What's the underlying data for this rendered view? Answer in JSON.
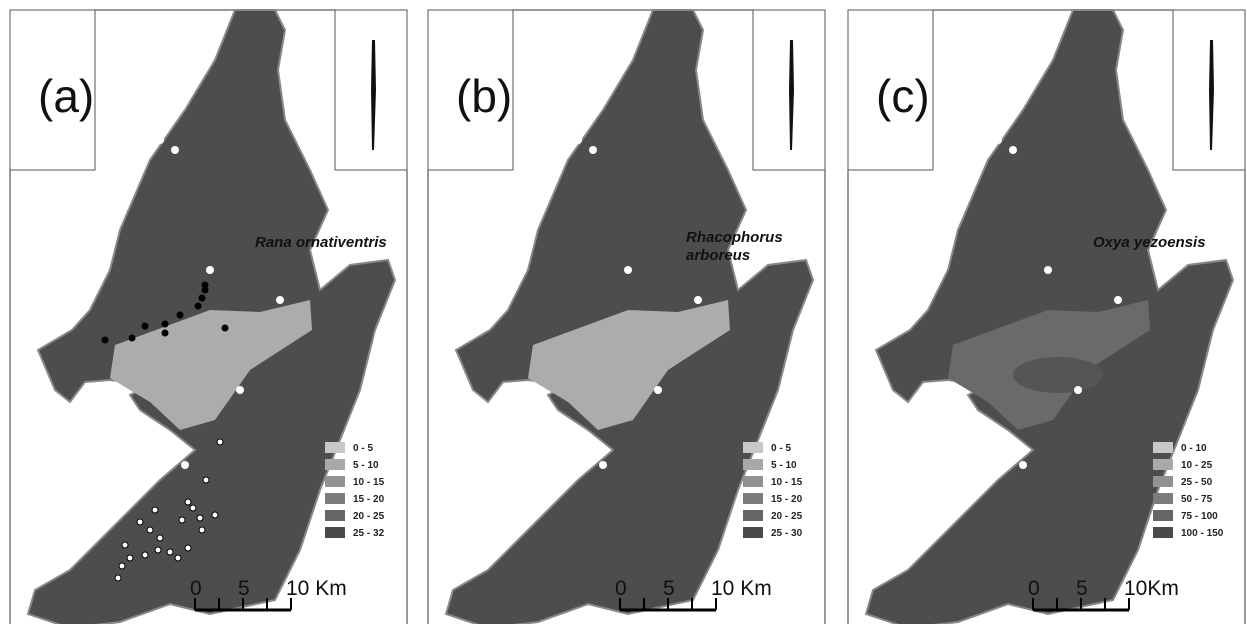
{
  "panels": [
    {
      "label": "(a)",
      "species": [
        "Rana ornativentris"
      ],
      "legend": [
        "0 - 5",
        "5 - 10",
        "10 - 15",
        "15 - 20",
        "20 - 25",
        "25 - 32"
      ],
      "scale": [
        "0",
        "5",
        "10 Km"
      ]
    },
    {
      "label": "(b)",
      "species": [
        "Rhacophorus",
        "arboreus"
      ],
      "legend": [
        "0 - 5",
        "5 - 10",
        "10 - 15",
        "15 - 20",
        "20 - 25",
        "25 - 30"
      ],
      "scale": [
        "0",
        "5",
        "10 Km"
      ]
    },
    {
      "label": "(c)",
      "species": [
        "Oxya yezoensis"
      ],
      "legend": [
        "0 - 10",
        "10 - 25",
        "25 - 50",
        "50 - 75",
        "75 - 100",
        "100 - 150"
      ],
      "scale": [
        "0",
        "5",
        "10Km"
      ]
    }
  ]
}
